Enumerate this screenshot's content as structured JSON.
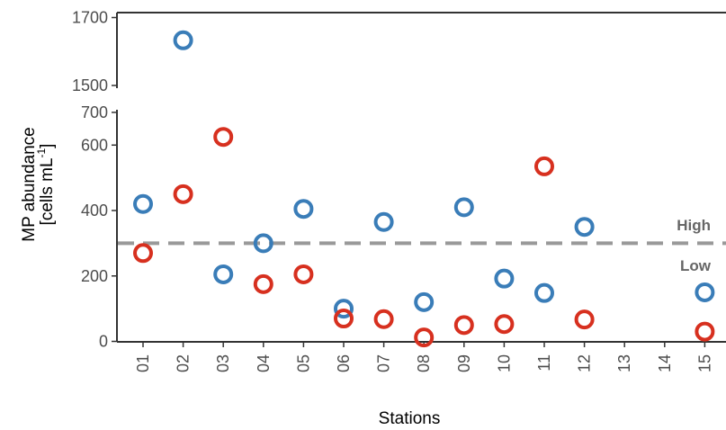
{
  "chart_data": {
    "type": "scatter",
    "title": "",
    "xlabel": "Stations",
    "ylabel_line1": "MP abundance",
    "ylabel_line2_pre": "[cells mL",
    "ylabel_line2_sup": "-1",
    "ylabel_line2_post": "]",
    "categories": [
      "01",
      "02",
      "03",
      "04",
      "05",
      "06",
      "07",
      "08",
      "09",
      "10",
      "11",
      "12",
      "13",
      "14",
      "15"
    ],
    "y_axis_broken": true,
    "y_lower_range": [
      0,
      700
    ],
    "y_upper_range": [
      1500,
      1700
    ],
    "y_lower_ticks": [
      0,
      200,
      400,
      600,
      700
    ],
    "y_upper_ticks": [
      1500,
      1700
    ],
    "grid": false,
    "threshold": {
      "value": 300,
      "color": "#999999",
      "label_above": "High",
      "label_below": "Low"
    },
    "series": [
      {
        "color": "#3a7db8",
        "points": [
          {
            "x": "01",
            "y": 420
          },
          {
            "x": "02",
            "y": 1633
          },
          {
            "x": "03",
            "y": 205
          },
          {
            "x": "04",
            "y": 300
          },
          {
            "x": "05",
            "y": 405
          },
          {
            "x": "06",
            "y": 100
          },
          {
            "x": "07",
            "y": 365
          },
          {
            "x": "08",
            "y": 120
          },
          {
            "x": "09",
            "y": 410
          },
          {
            "x": "10",
            "y": 192
          },
          {
            "x": "11",
            "y": 148
          },
          {
            "x": "12",
            "y": 350
          },
          {
            "x": "15",
            "y": 150
          }
        ]
      },
      {
        "color": "#d7301f",
        "points": [
          {
            "x": "01",
            "y": 270
          },
          {
            "x": "02",
            "y": 450
          },
          {
            "x": "03",
            "y": 625
          },
          {
            "x": "04",
            "y": 175
          },
          {
            "x": "05",
            "y": 205
          },
          {
            "x": "06",
            "y": 70
          },
          {
            "x": "07",
            "y": 68
          },
          {
            "x": "08",
            "y": 12
          },
          {
            "x": "09",
            "y": 50
          },
          {
            "x": "10",
            "y": 53
          },
          {
            "x": "11",
            "y": 535
          },
          {
            "x": "12",
            "y": 67
          },
          {
            "x": "15",
            "y": 30
          }
        ]
      }
    ]
  }
}
